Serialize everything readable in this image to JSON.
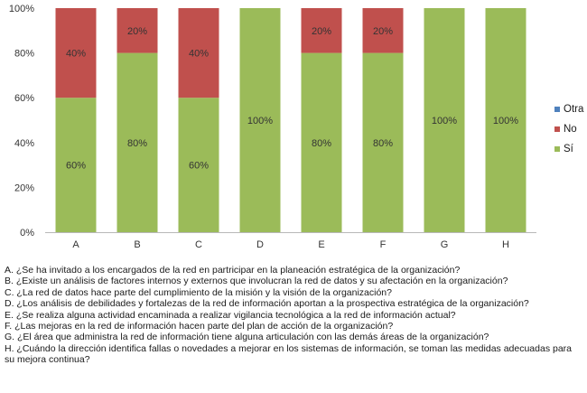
{
  "chart_data": {
    "type": "bar",
    "stacked": true,
    "categories": [
      "A",
      "B",
      "C",
      "D",
      "E",
      "F",
      "G",
      "H"
    ],
    "series": [
      {
        "name": "Sí",
        "color": "#9bbb59",
        "values": [
          60,
          80,
          60,
          100,
          80,
          80,
          100,
          100
        ],
        "labels": [
          "60%",
          "80%",
          "60%",
          "100%",
          "80%",
          "80%",
          "100%",
          "100%"
        ]
      },
      {
        "name": "No",
        "color": "#c0504d",
        "values": [
          40,
          20,
          40,
          0,
          20,
          20,
          0,
          0
        ],
        "labels": [
          "40%",
          "20%",
          "40%",
          "",
          "20%",
          "20%",
          "",
          ""
        ]
      },
      {
        "name": "Otra",
        "color": "#4f81bd",
        "values": [
          0,
          0,
          0,
          0,
          0,
          0,
          0,
          0
        ],
        "labels": [
          "",
          "",
          "",
          "",
          "",
          "",
          "",
          ""
        ]
      }
    ],
    "ylim": [
      0,
      100
    ],
    "yticks": [
      "0%",
      "20%",
      "40%",
      "60%",
      "80%",
      "100%"
    ],
    "grid": false,
    "legend_position": "right"
  },
  "legend": [
    {
      "label": "Otra",
      "color": "#4f81bd"
    },
    {
      "label": "No",
      "color": "#c0504d"
    },
    {
      "label": "Sí",
      "color": "#9bbb59"
    }
  ],
  "questions": [
    "A. ¿Se ha invitado a los encargados de la red en partricipar en la planeación estratégica de la organización?",
    "B. ¿Existe un análisis de factores internos y externos que involucran la red de datos y su afectación en la organización?",
    "C. ¿La red de datos hace parte del cumplimiento de la misión y la visión de la organización?",
    "D. ¿Los análisis de debilidades y fortalezas de la red de información aportan a la prospectiva estratégica de la organización?",
    "E. ¿Se realiza alguna actividad encaminada a realizar vigilancia tecnológica a la red de información actual?",
    "F. ¿Las mejoras en la red de información hacen parte del plan de acción de la organización?",
    "G. ¿El área que administra la red de información tiene alguna articulación con las demás áreas de la organización?",
    "H. ¿Cuándo la dirección identifica fallas o novedades a mejorar en los sistemas de información, se toman las medidas adecuadas para su mejora continua?"
  ]
}
